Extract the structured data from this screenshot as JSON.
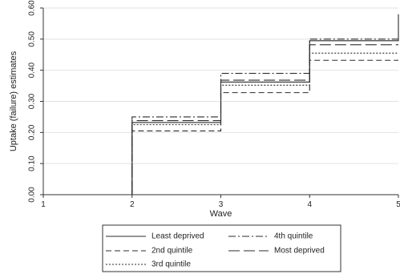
{
  "chart_data": {
    "type": "line",
    "step": true,
    "xlabel": "Wave",
    "ylabel": "Uptake (failure) estimates",
    "xlim": [
      1,
      5
    ],
    "ylim": [
      0,
      0.6
    ],
    "x_ticks": [
      "1",
      "2",
      "3",
      "4",
      "5"
    ],
    "y_ticks": [
      "0.00",
      "0.10",
      "0.20",
      "0.30",
      "0.40",
      "0.50",
      "0.60"
    ],
    "grid": true,
    "legend_position": "bottom",
    "series": [
      {
        "name": "Least deprived",
        "dash": "solid",
        "x": [
          1,
          2,
          3,
          4,
          5
        ],
        "y": [
          0.0,
          0.232,
          0.362,
          0.495,
          0.58
        ]
      },
      {
        "name": "2nd quintile",
        "dash": "dashed",
        "x": [
          1,
          2,
          3,
          4,
          5
        ],
        "y": [
          0.0,
          0.205,
          0.328,
          0.432,
          0.432
        ]
      },
      {
        "name": "3rd quintile",
        "dash": "dotted",
        "x": [
          1,
          2,
          3,
          4,
          5
        ],
        "y": [
          0.0,
          0.225,
          0.352,
          0.455,
          0.455
        ]
      },
      {
        "name": "4th quintile",
        "dash": "dashdot",
        "x": [
          1,
          2,
          3,
          4,
          5
        ],
        "y": [
          0.0,
          0.25,
          0.39,
          0.5,
          0.5
        ]
      },
      {
        "name": "Most deprived",
        "dash": "longdash",
        "x": [
          1,
          2,
          3,
          4,
          5
        ],
        "y": [
          0.0,
          0.238,
          0.368,
          0.482,
          0.482
        ]
      }
    ]
  }
}
